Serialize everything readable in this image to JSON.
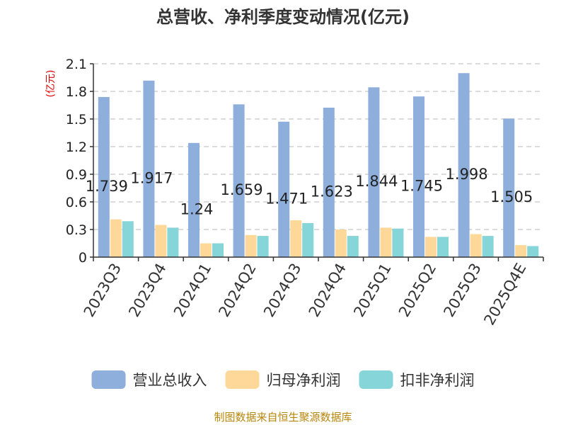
{
  "chart_data": {
    "type": "bar",
    "title": "总营收、净利季度变动情况(亿元)",
    "ylabel": "(亿元)",
    "xlabel": "",
    "categories": [
      "2023Q3",
      "2023Q4",
      "2024Q1",
      "2024Q2",
      "2024Q3",
      "2024Q4",
      "2025Q1",
      "2025Q2",
      "2025Q3",
      "2025Q4E"
    ],
    "ylim": [
      0,
      2.1
    ],
    "yticks": [
      "0",
      "0.3",
      "0.6",
      "0.9",
      "1.2",
      "1.5",
      "1.8",
      "2.1"
    ],
    "grid": true,
    "legend_position": "bottom",
    "series": [
      {
        "name": "营业总收入",
        "color": "#8eaedb",
        "values": [
          1.739,
          1.917,
          1.24,
          1.659,
          1.471,
          1.623,
          1.844,
          1.745,
          1.998,
          1.505
        ],
        "labels": [
          "1.739",
          "1.917",
          "1.24",
          "1.659",
          "1.471",
          "1.623",
          "1.844",
          "1.745",
          "1.998",
          "1.505"
        ]
      },
      {
        "name": "归母净利润",
        "color": "#fdd898",
        "values": [
          0.41,
          0.35,
          0.15,
          0.24,
          0.4,
          0.3,
          0.32,
          0.22,
          0.25,
          0.13
        ]
      },
      {
        "name": "扣非净利润",
        "color": "#86d5d8",
        "values": [
          0.39,
          0.32,
          0.15,
          0.23,
          0.37,
          0.23,
          0.31,
          0.22,
          0.23,
          0.12
        ]
      }
    ]
  },
  "footer": "制图数据来自恒生聚源数据库"
}
